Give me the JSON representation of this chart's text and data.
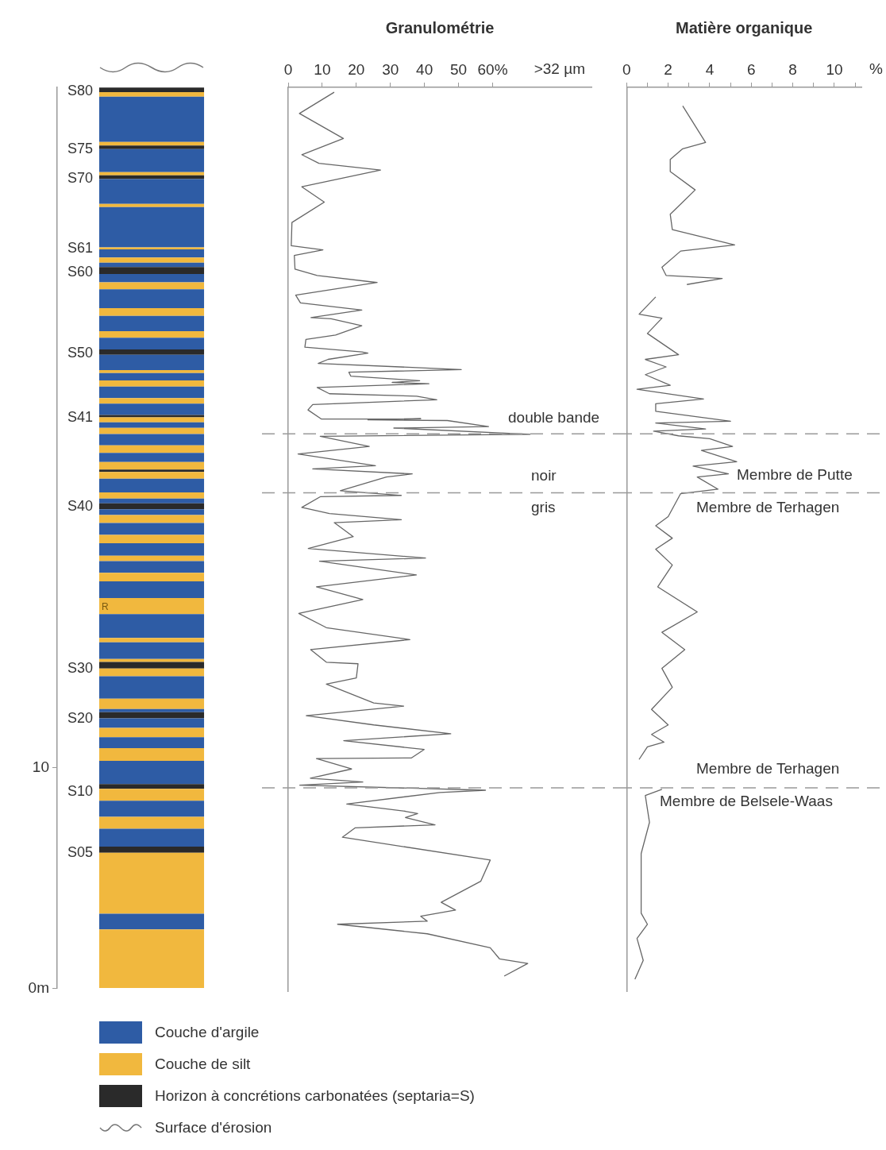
{
  "chart_data": [
    {
      "type": "bar",
      "stacked": true,
      "categories": [
        null
      ],
      "ylim": [
        0,
        40.8
      ],
      "yticks": [
        {
          "value": 0,
          "label": "0m"
        },
        10
      ],
      "tick_labels": "y",
      "legend": "bottom right",
      "annotations": [
        "S80",
        "S75",
        "S70",
        "S61",
        "S60",
        "S50",
        "S41",
        "S40",
        "R",
        "S30",
        "S20",
        "S10",
        "S05",
        "Surface d'érosion"
      ],
      "series": [
        {
          "color": "#f1b83e",
          "values": [
            2.67
          ]
        },
        {
          "name": "Couche d'argile",
          "color": "#2e5ca5",
          "values": [
            0.71
          ]
        },
        {
          "name": "Couche de silt",
          "color": "#f1b83e",
          "values": [
            2.76
          ]
        },
        {
          "name": "Horizon à concrétions carbonatées (septaria=S)",
          "color": "#2a2a2a",
          "values": [
            0.28
          ]
        },
        {
          "color": "#2e5ca5",
          "values": [
            0.81
          ]
        },
        {
          "color": "#f1b83e",
          "values": [
            0.54
          ]
        },
        {
          "color": "#2e5ca5",
          "values": [
            0.73
          ]
        },
        {
          "color": "#f1b83e",
          "values": [
            0.54
          ]
        },
        {
          "color": "#2a2a2a",
          "values": [
            0.21
          ]
        },
        {
          "color": "#2e5ca5",
          "values": [
            1.06
          ]
        },
        {
          "color": "#f1b83e",
          "values": [
            0.57
          ]
        },
        {
          "color": "#2e5ca5",
          "values": [
            0.5
          ]
        },
        {
          "color": "#f1b83e",
          "values": [
            0.42
          ]
        },
        {
          "color": "#2e5ca5",
          "values": [
            0.43
          ]
        },
        {
          "color": "#2a2a2a",
          "values": [
            0.28
          ]
        },
        {
          "color": "#2e5ca5",
          "values": [
            0.14
          ]
        },
        {
          "color": "#f1b83e",
          "values": [
            0.47
          ]
        },
        {
          "color": "#2e5ca5",
          "values": [
            1.02
          ]
        },
        {
          "color": "#f1b83e",
          "values": [
            0.35
          ]
        },
        {
          "color": "#2a2a2a",
          "values": [
            0.29
          ]
        },
        {
          "color": "#f1b83e",
          "values": [
            0.14
          ]
        },
        {
          "color": "#2e5ca5",
          "values": [
            0.75
          ]
        },
        {
          "color": "#f1b83e",
          "values": [
            0.2
          ]
        },
        {
          "color": "#2e5ca5",
          "values": [
            1.08
          ]
        },
        {
          "color": "#f1b83e",
          "values": [
            0.73
          ]
        },
        {
          "color": "#2e5ca5",
          "values": [
            0.75
          ]
        },
        {
          "color": "#f1b83e",
          "values": [
            0.39
          ]
        },
        {
          "color": "#2e5ca5",
          "values": [
            0.53
          ]
        },
        {
          "color": "#f1b83e",
          "values": [
            0.24
          ]
        },
        {
          "color": "#2e5ca5",
          "values": [
            0.57
          ]
        },
        {
          "color": "#f1b83e",
          "values": [
            0.38
          ]
        },
        {
          "color": "#2e5ca5",
          "values": [
            0.54
          ]
        },
        {
          "color": "#f1b83e",
          "values": [
            0.36
          ]
        },
        {
          "color": "#2e5ca5",
          "values": [
            0.26
          ]
        },
        {
          "color": "#2a2a2a",
          "values": [
            0.27
          ]
        },
        {
          "color": "#2e5ca5",
          "values": [
            0.21
          ]
        },
        {
          "color": "#f1b83e",
          "values": [
            0.28
          ]
        },
        {
          "color": "#2e5ca5",
          "values": [
            0.62
          ]
        },
        {
          "color": "#f1b83e",
          "values": [
            0.31
          ]
        },
        {
          "color": "#2a2a2a",
          "values": [
            0.1
          ]
        },
        {
          "color": "#f1b83e",
          "values": [
            0.35
          ]
        },
        {
          "color": "#2e5ca5",
          "values": [
            0.41
          ]
        },
        {
          "color": "#f1b83e",
          "values": [
            0.34
          ]
        },
        {
          "color": "#2e5ca5",
          "values": [
            0.51
          ]
        },
        {
          "color": "#f1b83e",
          "values": [
            0.28
          ]
        },
        {
          "color": "#2e5ca5",
          "values": [
            0.25
          ]
        },
        {
          "color": "#f1b83e",
          "values": [
            0.23
          ]
        },
        {
          "color": "#2a2a2a",
          "values": [
            0.11
          ]
        },
        {
          "color": "#2e5ca5",
          "values": [
            0.51
          ]
        },
        {
          "color": "#f1b83e",
          "values": [
            0.25
          ]
        },
        {
          "color": "#2e5ca5",
          "values": [
            0.52
          ]
        },
        {
          "color": "#f1b83e",
          "values": [
            0.28
          ]
        },
        {
          "color": "#2e5ca5",
          "values": [
            0.33
          ]
        },
        {
          "color": "#f1b83e",
          "values": [
            0.14
          ]
        },
        {
          "color": "#2e5ca5",
          "values": [
            0.69
          ]
        },
        {
          "color": "#2a2a2a",
          "values": [
            0.24
          ]
        },
        {
          "color": "#2e5ca5",
          "values": [
            0.53
          ]
        },
        {
          "color": "#f1b83e",
          "values": [
            0.3
          ]
        },
        {
          "color": "#2e5ca5",
          "values": [
            0.69
          ]
        },
        {
          "color": "#f1b83e",
          "values": [
            0.35
          ]
        },
        {
          "color": "#2e5ca5",
          "values": [
            0.86
          ]
        },
        {
          "color": "#f1b83e",
          "values": [
            0.31
          ]
        },
        {
          "color": "#2e5ca5",
          "values": [
            0.38
          ]
        },
        {
          "color": "#2a2a2a",
          "values": [
            0.31
          ]
        },
        {
          "color": "#2e5ca5",
          "values": [
            0.2
          ]
        },
        {
          "color": "#f1b83e",
          "values": [
            0.24
          ]
        },
        {
          "color": "#2e5ca5",
          "values": [
            0.36
          ]
        },
        {
          "color": "#f1b83e",
          "values": [
            0.09
          ]
        },
        {
          "color": "#2e5ca5",
          "values": [
            1.83
          ]
        },
        {
          "color": "#f1b83e",
          "values": [
            0.14
          ]
        },
        {
          "color": "#2e5ca5",
          "values": [
            1.13
          ]
        },
        {
          "color": "#2a2a2a",
          "values": [
            0.17
          ]
        },
        {
          "color": "#f1b83e",
          "values": [
            0.14
          ]
        },
        {
          "color": "#2e5ca5",
          "values": [
            1.04
          ]
        },
        {
          "color": "#2a2a2a",
          "values": [
            0.17
          ]
        },
        {
          "color": "#f1b83e",
          "values": [
            0.16
          ]
        },
        {
          "color": "#2e5ca5",
          "values": [
            2.05
          ]
        },
        {
          "color": "#f1b83e",
          "values": [
            0.2
          ]
        },
        {
          "color": "#2a2a2a",
          "values": [
            0.21
          ]
        }
      ]
    },
    {
      "type": "line",
      "title": "Granulométrie",
      "xlabel": ">32 µm",
      "xlim": [
        0,
        89
      ],
      "xticks": [
        0,
        10,
        20,
        30,
        40,
        50,
        {
          "value": 60,
          "label": "60%"
        }
      ],
      "ylim": [
        0,
        40.8
      ],
      "tick_labels": "x",
      "marker": "none",
      "line_style": "solid",
      "ref_lines": [
        {
          "axis": "y",
          "value": 25.16,
          "color": "#999999",
          "line_style": "dashed"
        },
        {
          "axis": "y",
          "value": 22.5,
          "color": "#999999",
          "line_style": "dashed"
        },
        {
          "axis": "y",
          "value": 9.18,
          "color": "#999999",
          "line_style": "dashed"
        }
      ],
      "annotations": [
        "double bande",
        "noir",
        "gris"
      ],
      "series": [
        {
          "color": "#666666",
          "x": [
            13.5,
            3.3,
            16.2,
            4.0,
            9.0,
            27.1,
            4.0,
            10.6,
            1.1,
            0.9,
            10.2,
            1.8,
            2.0,
            8.5,
            26.1,
            2.2,
            3.6,
            21.6,
            6.7,
            12.6,
            21.6,
            13.9,
            5.2,
            4.9,
            21.6,
            23.4,
            11.7,
            8.8,
            50.8,
            17.8,
            18.4,
            38.6,
            30.5,
            41.3,
            8.5,
            12.1,
            37.7,
            43.6,
            7.2,
            5.8,
            9.7,
            38.9,
            23.4,
            46.7,
            58.8,
            31.0,
            71.0,
            9.4,
            23.8,
            2.9,
            25.6,
            7.2,
            36.4,
            28.8,
            15.3,
            33.2,
            9.4,
            4.0,
            12.1,
            33.2,
            13.5,
            19.1,
            5.9,
            40.3,
            9.2,
            37.6,
            8.3,
            21.9,
            3.1,
            11.2,
            35.7,
            6.6,
            11.2,
            20.5,
            20.0,
            11.2,
            25.1,
            33.9,
            5.3,
            25.1,
            47.7,
            16.3,
            39.9,
            36.2,
            8.3,
            18.6,
            6.5,
            21.9,
            3.4,
            57.9,
            44.5,
            17.2,
            34.4,
            38.0,
            34.4,
            43.1,
            19.6,
            15.9,
            59.3,
            56.5,
            44.9,
            49.1,
            38.9,
            40.8,
            14.5,
            40.8,
            59.3,
            62.0,
            70.3,
            63.4
          ],
          "values": [
            40.58,
            39.62,
            38.49,
            37.76,
            37.37,
            37.07,
            36.31,
            35.62,
            34.7,
            33.65,
            33.46,
            33.21,
            32.59,
            32.31,
            31.99,
            31.42,
            31.07,
            30.75,
            30.41,
            30.35,
            30.04,
            29.62,
            29.42,
            29.07,
            28.86,
            28.8,
            28.52,
            28.34,
            28.06,
            27.94,
            27.76,
            27.56,
            27.48,
            27.42,
            27.25,
            26.97,
            26.86,
            26.7,
            26.48,
            26.24,
            25.83,
            25.84,
            25.79,
            25.76,
            25.49,
            25.42,
            25.14,
            25.05,
            24.59,
            24.25,
            23.72,
            23.58,
            23.35,
            23.21,
            22.59,
            22.38,
            22.32,
            21.84,
            21.56,
            21.28,
            21.15,
            20.52,
            19.98,
            19.55,
            19.41,
            18.79,
            18.25,
            17.68,
            17.05,
            16.41,
            15.87,
            15.42,
            14.85,
            14.78,
            14.14,
            13.86,
            13.01,
            12.87,
            12.44,
            12.02,
            11.62,
            11.31,
            10.91,
            10.53,
            10.5,
            10.03,
            9.61,
            9.44,
            9.3,
            9.07,
            8.97,
            8.45,
            8.12,
            8.02,
            7.84,
            7.51,
            7.37,
            6.95,
            5.92,
            4.96,
            4.01,
            3.66,
            3.38,
            3.16,
            3.02,
            2.59,
            1.96,
            1.46,
            1.25,
            0.68
          ]
        }
      ]
    },
    {
      "type": "line",
      "title": "Matière organique",
      "xlabel": "%",
      "xlim": [
        0,
        11.3
      ],
      "xticks": [
        0,
        {
          "value": 1,
          "label": null
        },
        2,
        {
          "value": 3,
          "label": null
        },
        4,
        {
          "value": 5,
          "label": null
        },
        6,
        {
          "value": 7,
          "label": null
        },
        8,
        {
          "value": 9,
          "label": null
        },
        10,
        {
          "value": 11,
          "label": null
        }
      ],
      "ylim": [
        0,
        40.8
      ],
      "tick_labels": "x",
      "marker": "none",
      "line_style": "solid",
      "ref_lines": [
        {
          "axis": "y",
          "value": 25.16,
          "color": "#999999",
          "line_style": "dashed"
        },
        {
          "axis": "y",
          "value": 22.5,
          "color": "#999999",
          "line_style": "dashed"
        },
        {
          "axis": "y",
          "value": 9.18,
          "color": "#999999",
          "line_style": "dashed"
        }
      ],
      "annotations": [
        "Membre de Putte",
        "Membre de Terhagen",
        "Membre de Terhagen",
        "Membre de Belsele-Waas"
      ],
      "series": [
        {
          "color": "#666666",
          "x": [
            2.7,
            3.8,
            2.7,
            2.1,
            2.1,
            3.3,
            2.1,
            2.2,
            5.2,
            2.6,
            1.7,
            1.9,
            4.6,
            2.9,
            null,
            1.4,
            0.6,
            1.7,
            1.0,
            2.5,
            0.9,
            1.9,
            0.9,
            2.1,
            0.5,
            3.7,
            1.4,
            1.4,
            5.0,
            1.4,
            3.8,
            1.3,
            2.5,
            4.0,
            5.1,
            3.6,
            5.3,
            3.2,
            4.9,
            3.4,
            4.4,
            2.6,
            2.0,
            1.4,
            2.2,
            1.4,
            2.2,
            1.5,
            3.4,
            1.7,
            2.8,
            1.7,
            2.2,
            1.2,
            2.0,
            1.2,
            1.8,
            1.0,
            0.6,
            null,
            1.7,
            0.9,
            1.1,
            0.7,
            0.7,
            1.0,
            0.5,
            0.8,
            0.4
          ],
          "values": [
            39.96,
            38.31,
            38.03,
            37.55,
            37.0,
            36.17,
            35.07,
            34.38,
            33.69,
            33.41,
            32.68,
            32.31,
            32.17,
            31.9,
            null,
            31.34,
            30.56,
            30.38,
            29.69,
            28.73,
            28.52,
            28.18,
            27.83,
            27.35,
            27.17,
            26.73,
            26.52,
            26.18,
            25.73,
            25.65,
            25.38,
            25.28,
            25.07,
            24.94,
            24.59,
            24.41,
            23.9,
            23.7,
            23.35,
            23.21,
            22.66,
            22.46,
            21.42,
            21.01,
            20.45,
            19.95,
            19.24,
            18.25,
            17.12,
            16.2,
            15.42,
            14.57,
            13.72,
            12.72,
            12.02,
            11.59,
            11.24,
            11.03,
            10.46,
            null,
            9.11,
            8.83,
            7.62,
            6.21,
            3.52,
            3.02,
            2.38,
            1.39,
            0.54
          ]
        }
      ]
    }
  ]
}
